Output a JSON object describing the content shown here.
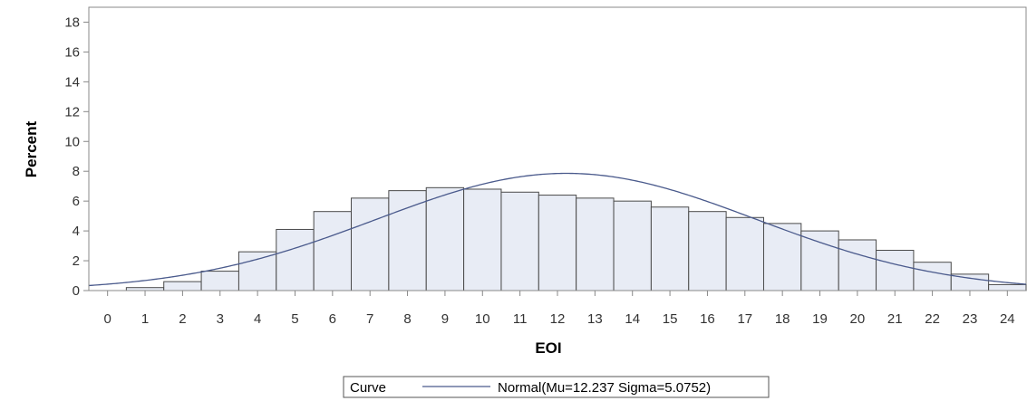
{
  "chart_data": {
    "type": "bar",
    "xlabel": "EOI",
    "ylabel": "Percent",
    "xlim": [
      -0.5,
      24.5
    ],
    "ylim": [
      0,
      19
    ],
    "y_ticks": [
      0,
      2,
      4,
      6,
      8,
      10,
      12,
      14,
      16,
      18
    ],
    "x_ticks": [
      0,
      1,
      2,
      3,
      4,
      5,
      6,
      7,
      8,
      9,
      10,
      11,
      12,
      13,
      14,
      15,
      16,
      17,
      18,
      19,
      20,
      21,
      22,
      23,
      24
    ],
    "categories": [
      0,
      1,
      2,
      3,
      4,
      5,
      6,
      7,
      8,
      9,
      10,
      11,
      12,
      13,
      14,
      15,
      16,
      17,
      18,
      19,
      20,
      21,
      22,
      23,
      24
    ],
    "values": [
      0.0,
      0.2,
      0.6,
      1.3,
      2.6,
      4.1,
      5.3,
      6.2,
      6.7,
      6.9,
      6.8,
      6.6,
      6.4,
      6.2,
      6.0,
      5.6,
      5.3,
      4.9,
      4.5,
      4.0,
      3.4,
      2.7,
      1.9,
      1.1,
      0.4
    ],
    "curve": {
      "distribution": "Normal",
      "mu": 12.237,
      "sigma": 5.0752
    },
    "grid": false,
    "legend": {
      "placement": "bottom",
      "title": "Curve",
      "entries": [
        {
          "label": "Normal(Mu=12.237 Sigma=5.0752)"
        }
      ]
    },
    "colors": {
      "bar_fill": "#e8ecf5",
      "bar_stroke": "#4a4a4a",
      "curve": "#4a5a8c",
      "axis": "#888888"
    }
  }
}
